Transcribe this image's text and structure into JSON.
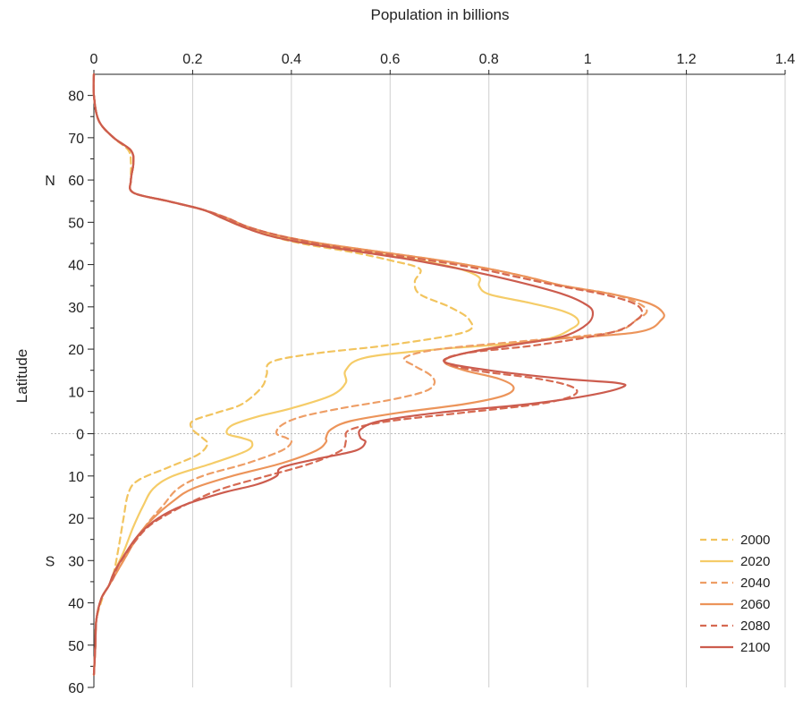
{
  "chart_data": {
    "type": "line",
    "title": "",
    "xlabel": "Population in billions",
    "ylabel": "Latitude",
    "xlim": [
      0,
      1.4
    ],
    "ylim": [
      -60,
      85
    ],
    "x_ticks": [
      0,
      0.2,
      0.4,
      0.6,
      0.8,
      1,
      1.2,
      1.4
    ],
    "x_tick_labels": [
      "0",
      "0.2",
      "0.4",
      "0.6",
      "0.8",
      "1",
      "1.2",
      "1.4"
    ],
    "y_ticks": [
      80,
      70,
      60,
      50,
      40,
      30,
      20,
      10,
      0,
      -10,
      -20,
      -30,
      -40,
      -50,
      -60
    ],
    "y_tick_labels": [
      "80",
      "70",
      "60",
      "50",
      "40",
      "30",
      "20",
      "10",
      "0",
      "10",
      "20",
      "30",
      "40",
      "50",
      "60"
    ],
    "hemisphere_labels": [
      {
        "text": "N",
        "lat": 60
      },
      {
        "text": "S",
        "lat": -30
      }
    ],
    "grid": "vertical",
    "zero_line": "dotted",
    "legend_position": "bottom-right",
    "series": [
      {
        "name": "2000",
        "color": "#F2C45E",
        "dash": true,
        "points": [
          [
            0.0,
            85
          ],
          [
            0.0,
            80
          ],
          [
            0.01,
            74
          ],
          [
            0.04,
            70
          ],
          [
            0.07,
            67
          ],
          [
            0.075,
            64
          ],
          [
            0.075,
            60
          ],
          [
            0.08,
            57
          ],
          [
            0.15,
            55
          ],
          [
            0.22,
            53
          ],
          [
            0.26,
            51
          ],
          [
            0.3,
            49
          ],
          [
            0.35,
            47
          ],
          [
            0.42,
            45
          ],
          [
            0.52,
            43
          ],
          [
            0.6,
            41
          ],
          [
            0.66,
            39
          ],
          [
            0.65,
            36
          ],
          [
            0.66,
            33
          ],
          [
            0.72,
            30
          ],
          [
            0.76,
            27
          ],
          [
            0.75,
            24
          ],
          [
            0.6,
            21
          ],
          [
            0.45,
            19
          ],
          [
            0.36,
            17
          ],
          [
            0.35,
            14
          ],
          [
            0.34,
            11
          ],
          [
            0.3,
            7
          ],
          [
            0.25,
            5
          ],
          [
            0.2,
            3
          ],
          [
            0.2,
            1
          ],
          [
            0.22,
            -1
          ],
          [
            0.23,
            -2.5
          ],
          [
            0.21,
            -5
          ],
          [
            0.15,
            -8
          ],
          [
            0.09,
            -11
          ],
          [
            0.07,
            -14
          ],
          [
            0.06,
            -20
          ],
          [
            0.05,
            -27
          ],
          [
            0.04,
            -33
          ],
          [
            0.03,
            -36
          ],
          [
            0.02,
            -38
          ],
          [
            0.005,
            -44
          ],
          [
            0.003,
            -50
          ],
          [
            0.0,
            -57
          ]
        ]
      },
      {
        "name": "2020",
        "color": "#F5CC68",
        "dash": false,
        "points": [
          [
            0.0,
            85
          ],
          [
            0.0,
            80
          ],
          [
            0.01,
            74
          ],
          [
            0.04,
            70
          ],
          [
            0.075,
            67
          ],
          [
            0.08,
            64
          ],
          [
            0.075,
            60
          ],
          [
            0.08,
            57
          ],
          [
            0.15,
            55
          ],
          [
            0.22,
            53
          ],
          [
            0.26,
            51
          ],
          [
            0.3,
            49
          ],
          [
            0.36,
            47
          ],
          [
            0.44,
            45
          ],
          [
            0.55,
            43
          ],
          [
            0.66,
            41
          ],
          [
            0.74,
            39
          ],
          [
            0.78,
            37
          ],
          [
            0.78,
            35
          ],
          [
            0.8,
            33
          ],
          [
            0.88,
            31
          ],
          [
            0.95,
            29
          ],
          [
            0.98,
            27
          ],
          [
            0.97,
            25
          ],
          [
            0.9,
            22
          ],
          [
            0.7,
            20
          ],
          [
            0.55,
            18
          ],
          [
            0.51,
            15
          ],
          [
            0.51,
            12
          ],
          [
            0.48,
            9
          ],
          [
            0.4,
            6
          ],
          [
            0.33,
            4
          ],
          [
            0.28,
            2
          ],
          [
            0.27,
            0
          ],
          [
            0.3,
            -1
          ],
          [
            0.32,
            -2
          ],
          [
            0.31,
            -4
          ],
          [
            0.24,
            -7
          ],
          [
            0.16,
            -10
          ],
          [
            0.12,
            -13
          ],
          [
            0.1,
            -17
          ],
          [
            0.08,
            -22
          ],
          [
            0.06,
            -28
          ],
          [
            0.04,
            -33
          ],
          [
            0.03,
            -36
          ],
          [
            0.015,
            -39
          ],
          [
            0.005,
            -44
          ],
          [
            0.003,
            -50
          ],
          [
            0.0,
            -57
          ]
        ]
      },
      {
        "name": "2040",
        "color": "#EE9E66",
        "dash": true,
        "points": [
          [
            0.0,
            85
          ],
          [
            0.0,
            80
          ],
          [
            0.01,
            74
          ],
          [
            0.04,
            70
          ],
          [
            0.075,
            67
          ],
          [
            0.08,
            64
          ],
          [
            0.075,
            60
          ],
          [
            0.08,
            57
          ],
          [
            0.15,
            55
          ],
          [
            0.22,
            53
          ],
          [
            0.27,
            51
          ],
          [
            0.31,
            49
          ],
          [
            0.37,
            47
          ],
          [
            0.46,
            45
          ],
          [
            0.58,
            43
          ],
          [
            0.7,
            41
          ],
          [
            0.8,
            39
          ],
          [
            0.88,
            37
          ],
          [
            0.95,
            35
          ],
          [
            1.05,
            33
          ],
          [
            1.1,
            31
          ],
          [
            1.12,
            29
          ],
          [
            1.1,
            27
          ],
          [
            1.05,
            24
          ],
          [
            0.88,
            22
          ],
          [
            0.7,
            20
          ],
          [
            0.63,
            18
          ],
          [
            0.65,
            16
          ],
          [
            0.68,
            14
          ],
          [
            0.69,
            12
          ],
          [
            0.67,
            10
          ],
          [
            0.6,
            8
          ],
          [
            0.5,
            6
          ],
          [
            0.42,
            4
          ],
          [
            0.38,
            2
          ],
          [
            0.37,
            0
          ],
          [
            0.39,
            -1
          ],
          [
            0.4,
            -2
          ],
          [
            0.38,
            -4
          ],
          [
            0.31,
            -7
          ],
          [
            0.22,
            -10
          ],
          [
            0.17,
            -13
          ],
          [
            0.14,
            -17
          ],
          [
            0.11,
            -21
          ],
          [
            0.08,
            -26
          ],
          [
            0.06,
            -30
          ],
          [
            0.04,
            -34
          ],
          [
            0.03,
            -36
          ],
          [
            0.015,
            -39
          ],
          [
            0.005,
            -44
          ],
          [
            0.003,
            -50
          ],
          [
            0.0,
            -57
          ]
        ]
      },
      {
        "name": "2060",
        "color": "#EC945A",
        "dash": false,
        "points": [
          [
            0.0,
            85
          ],
          [
            0.0,
            80
          ],
          [
            0.01,
            74
          ],
          [
            0.04,
            70
          ],
          [
            0.075,
            67
          ],
          [
            0.08,
            64
          ],
          [
            0.075,
            60
          ],
          [
            0.08,
            57
          ],
          [
            0.15,
            55
          ],
          [
            0.22,
            53
          ],
          [
            0.27,
            51
          ],
          [
            0.31,
            49
          ],
          [
            0.37,
            47
          ],
          [
            0.46,
            45
          ],
          [
            0.58,
            43
          ],
          [
            0.7,
            41
          ],
          [
            0.8,
            39
          ],
          [
            0.88,
            37
          ],
          [
            0.95,
            35
          ],
          [
            1.05,
            33
          ],
          [
            1.12,
            31
          ],
          [
            1.15,
            29
          ],
          [
            1.15,
            27
          ],
          [
            1.1,
            24
          ],
          [
            0.9,
            22
          ],
          [
            0.75,
            19
          ],
          [
            0.71,
            17
          ],
          [
            0.75,
            15
          ],
          [
            0.82,
            13
          ],
          [
            0.85,
            11
          ],
          [
            0.83,
            9
          ],
          [
            0.75,
            7
          ],
          [
            0.62,
            5
          ],
          [
            0.52,
            3
          ],
          [
            0.48,
            1
          ],
          [
            0.47,
            -1
          ],
          [
            0.47,
            -2
          ],
          [
            0.45,
            -4
          ],
          [
            0.38,
            -7
          ],
          [
            0.28,
            -10
          ],
          [
            0.2,
            -13
          ],
          [
            0.16,
            -16
          ],
          [
            0.12,
            -20
          ],
          [
            0.09,
            -24
          ],
          [
            0.07,
            -28
          ],
          [
            0.05,
            -32
          ],
          [
            0.04,
            -34
          ],
          [
            0.03,
            -36
          ],
          [
            0.015,
            -39
          ],
          [
            0.005,
            -44
          ],
          [
            0.003,
            -50
          ],
          [
            0.0,
            -57
          ]
        ]
      },
      {
        "name": "2080",
        "color": "#D66A52",
        "dash": true,
        "points": [
          [
            0.0,
            85
          ],
          [
            0.0,
            80
          ],
          [
            0.01,
            74
          ],
          [
            0.04,
            70
          ],
          [
            0.075,
            67
          ],
          [
            0.08,
            64
          ],
          [
            0.075,
            60
          ],
          [
            0.08,
            57
          ],
          [
            0.15,
            55
          ],
          [
            0.22,
            53
          ],
          [
            0.27,
            51
          ],
          [
            0.31,
            49
          ],
          [
            0.37,
            47
          ],
          [
            0.45,
            45
          ],
          [
            0.56,
            43
          ],
          [
            0.68,
            41
          ],
          [
            0.78,
            39
          ],
          [
            0.86,
            37
          ],
          [
            0.94,
            35
          ],
          [
            1.03,
            33
          ],
          [
            1.09,
            31
          ],
          [
            1.11,
            29
          ],
          [
            1.1,
            27
          ],
          [
            1.05,
            24
          ],
          [
            0.9,
            21
          ],
          [
            0.75,
            19
          ],
          [
            0.71,
            17
          ],
          [
            0.77,
            15
          ],
          [
            0.9,
            13
          ],
          [
            0.97,
            11
          ],
          [
            0.97,
            9
          ],
          [
            0.9,
            7
          ],
          [
            0.75,
            5
          ],
          [
            0.6,
            3
          ],
          [
            0.52,
            1
          ],
          [
            0.51,
            -1
          ],
          [
            0.51,
            -2
          ],
          [
            0.5,
            -4
          ],
          [
            0.44,
            -7
          ],
          [
            0.35,
            -10
          ],
          [
            0.26,
            -13
          ],
          [
            0.2,
            -16
          ],
          [
            0.15,
            -19
          ],
          [
            0.11,
            -22
          ],
          [
            0.08,
            -26
          ],
          [
            0.05,
            -31
          ],
          [
            0.04,
            -34
          ],
          [
            0.03,
            -36
          ],
          [
            0.015,
            -39
          ],
          [
            0.005,
            -44
          ],
          [
            0.003,
            -50
          ],
          [
            0.0,
            -57
          ]
        ]
      },
      {
        "name": "2100",
        "color": "#CC5C4E",
        "dash": false,
        "points": [
          [
            0.0,
            85
          ],
          [
            0.0,
            80
          ],
          [
            0.01,
            74
          ],
          [
            0.04,
            70
          ],
          [
            0.075,
            67
          ],
          [
            0.08,
            64
          ],
          [
            0.075,
            60
          ],
          [
            0.08,
            57
          ],
          [
            0.15,
            55
          ],
          [
            0.22,
            53
          ],
          [
            0.26,
            51
          ],
          [
            0.3,
            49
          ],
          [
            0.35,
            47
          ],
          [
            0.43,
            45
          ],
          [
            0.54,
            43
          ],
          [
            0.65,
            41
          ],
          [
            0.74,
            39
          ],
          [
            0.82,
            37
          ],
          [
            0.89,
            35
          ],
          [
            0.95,
            33
          ],
          [
            0.99,
            31
          ],
          [
            1.01,
            29
          ],
          [
            1.0,
            26
          ],
          [
            0.95,
            23
          ],
          [
            0.85,
            21
          ],
          [
            0.75,
            19
          ],
          [
            0.71,
            17
          ],
          [
            0.8,
            15
          ],
          [
            0.95,
            13
          ],
          [
            1.06,
            12
          ],
          [
            1.07,
            11
          ],
          [
            1.0,
            9
          ],
          [
            0.88,
            7
          ],
          [
            0.7,
            5
          ],
          [
            0.58,
            3
          ],
          [
            0.54,
            1
          ],
          [
            0.54,
            -1
          ],
          [
            0.55,
            -2
          ],
          [
            0.53,
            -4
          ],
          [
            0.45,
            -6
          ],
          [
            0.38,
            -8
          ],
          [
            0.37,
            -10
          ],
          [
            0.33,
            -12
          ],
          [
            0.26,
            -14
          ],
          [
            0.18,
            -17
          ],
          [
            0.13,
            -20
          ],
          [
            0.09,
            -24
          ],
          [
            0.06,
            -29
          ],
          [
            0.04,
            -33
          ],
          [
            0.03,
            -36
          ],
          [
            0.015,
            -39
          ],
          [
            0.005,
            -44
          ],
          [
            0.003,
            -50
          ],
          [
            0.0,
            -57
          ]
        ]
      }
    ]
  }
}
